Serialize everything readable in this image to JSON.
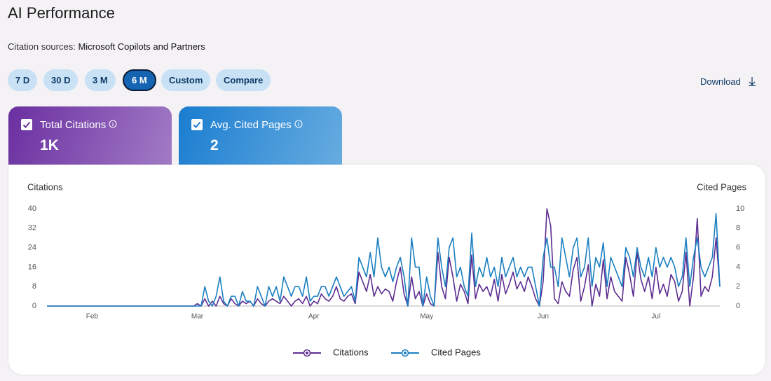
{
  "header": {
    "title": "AI Performance",
    "source_label": "Citation sources:",
    "source_value": "Microsoft Copilots and Partners"
  },
  "controls": {
    "ranges": [
      "7 D",
      "30 D",
      "3 M",
      "6 M",
      "Custom",
      "Compare"
    ],
    "selected": 3,
    "download": "Download"
  },
  "cards": [
    {
      "label": "Total Citations",
      "value": "1K"
    },
    {
      "label": "Avg. Cited Pages",
      "value": "2"
    }
  ],
  "chart_data": {
    "type": "line",
    "y_label": "Citations",
    "y2_label": "Cited Pages",
    "categories": [
      null,
      null,
      null,
      null,
      null,
      null,
      null,
      null,
      null,
      null,
      null,
      null,
      "Feb",
      null,
      null,
      null,
      null,
      null,
      null,
      null,
      null,
      null,
      null,
      null,
      null,
      null,
      null,
      null,
      null,
      null,
      null,
      null,
      null,
      null,
      null,
      null,
      null,
      null,
      null,
      null,
      "Mar",
      null,
      null,
      null,
      null,
      null,
      null,
      null,
      null,
      null,
      null,
      null,
      null,
      null,
      null,
      null,
      null,
      null,
      null,
      null,
      null,
      null,
      null,
      null,
      null,
      null,
      null,
      null,
      null,
      null,
      null,
      "Apr",
      null,
      null,
      null,
      null,
      null,
      null,
      null,
      null,
      null,
      null,
      null,
      null,
      null,
      null,
      null,
      null,
      null,
      null,
      null,
      null,
      null,
      null,
      null,
      null,
      null,
      null,
      null,
      null,
      null,
      "May",
      null,
      null,
      null,
      null,
      null,
      null,
      null,
      null,
      null,
      null,
      null,
      null,
      null,
      null,
      null,
      null,
      null,
      null,
      null,
      null,
      null,
      null,
      null,
      null,
      null,
      null,
      null,
      null,
      null,
      null,
      "Jun",
      null,
      null,
      null,
      null,
      null,
      null,
      null,
      null,
      null,
      null,
      null,
      null,
      null,
      null,
      null,
      null,
      null,
      null,
      null,
      null,
      null,
      null,
      null,
      null,
      null,
      null,
      null,
      null,
      null,
      "Jul",
      null,
      null,
      null,
      null,
      null,
      null,
      null,
      null,
      null,
      null,
      null,
      null,
      null,
      null,
      null,
      null,
      null
    ],
    "series": [
      {
        "name": "Citations",
        "color": "#5c2d91",
        "values": [
          0,
          0,
          0,
          0,
          0,
          0,
          0,
          0,
          0,
          0,
          0,
          0,
          0,
          0,
          0,
          0,
          0,
          0,
          0,
          0,
          0,
          0,
          0,
          0,
          0,
          0,
          0,
          0,
          0,
          0,
          0,
          0,
          0,
          0,
          0,
          0,
          0,
          0,
          0,
          0,
          1,
          0,
          3,
          0,
          2,
          0,
          4,
          1,
          0,
          3,
          1,
          0,
          2,
          1,
          2,
          0,
          3,
          1,
          0,
          2,
          3,
          2,
          1,
          4,
          2,
          0,
          2,
          3,
          1,
          4,
          0,
          2,
          1,
          5,
          3,
          2,
          4,
          8,
          3,
          2,
          4,
          5,
          1,
          14,
          10,
          6,
          13,
          4,
          8,
          5,
          7,
          6,
          2,
          10,
          16,
          5,
          0,
          12,
          3,
          6,
          0,
          5,
          1,
          0,
          22,
          8,
          3,
          20,
          12,
          2,
          9,
          6,
          1,
          21,
          3,
          9,
          6,
          8,
          4,
          11,
          2,
          13,
          5,
          9,
          14,
          7,
          10,
          6,
          12,
          8,
          3,
          0,
          10,
          40,
          33,
          3,
          1,
          10,
          6,
          4,
          15,
          20,
          2,
          8,
          17,
          0,
          9,
          4,
          19,
          3,
          12,
          6,
          4,
          2,
          20,
          13,
          4,
          22,
          11,
          6,
          12,
          3,
          16,
          5,
          9,
          4,
          13,
          10,
          2,
          6,
          22,
          0,
          12,
          36,
          4,
          8,
          6,
          12,
          28,
          8
        ]
      },
      {
        "name": "Cited Pages",
        "color": "#1a7fc1",
        "axis": "y2",
        "values": [
          0,
          0,
          0,
          0,
          0,
          0,
          0,
          0,
          0,
          0,
          0,
          0,
          0,
          0,
          0,
          0,
          0,
          0,
          0,
          0,
          0,
          0,
          0,
          0,
          0,
          0,
          0,
          0,
          0,
          0,
          0,
          0,
          0,
          0,
          0,
          0,
          0,
          0,
          0,
          0,
          0,
          0,
          2,
          0.5,
          0,
          1,
          3,
          0.5,
          0,
          1,
          1,
          0,
          1.5,
          0.5,
          0.5,
          0,
          2,
          1,
          0,
          2,
          1,
          2,
          0.5,
          3,
          2,
          1,
          2,
          2,
          1,
          3,
          0.5,
          1,
          1,
          2,
          2,
          1,
          2,
          3,
          2,
          1,
          1.5,
          2,
          0.5,
          5,
          4,
          3,
          5.5,
          3,
          7,
          4,
          3,
          4,
          2.5,
          4,
          5,
          3,
          0,
          7,
          4,
          4,
          0,
          3,
          1,
          0,
          7,
          4,
          2,
          6,
          7,
          3,
          4,
          2,
          1,
          7.5,
          2,
          4,
          3,
          5,
          3,
          4,
          2,
          5,
          3,
          4,
          5,
          3,
          4,
          3,
          4,
          4,
          2,
          0,
          5,
          7,
          4,
          4,
          2,
          7,
          5,
          3,
          6,
          7,
          3,
          4,
          7,
          2,
          5,
          4,
          6.5,
          2,
          5,
          4,
          3,
          2,
          6,
          5,
          3,
          6,
          4,
          3,
          5,
          3,
          6,
          4,
          5,
          4,
          5,
          4,
          2,
          3,
          7,
          2,
          5,
          7,
          4,
          3,
          4,
          5,
          9.5,
          2
        ]
      }
    ],
    "ylim": [
      0,
      40
    ],
    "yticks": [
      0,
      8,
      16,
      24,
      32,
      40
    ],
    "y2lim": [
      0,
      10
    ],
    "y2ticks": [
      0,
      2,
      4,
      6,
      8,
      10
    ],
    "grid": false,
    "legend": "bottom"
  }
}
